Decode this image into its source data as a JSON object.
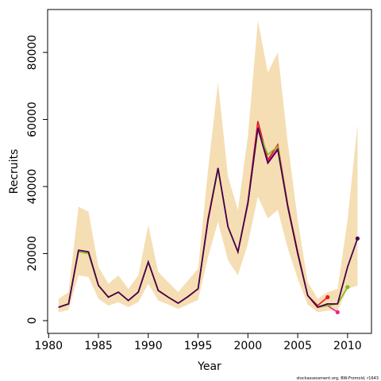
{
  "chart_data": {
    "type": "line",
    "xlabel": "Year",
    "ylabel": "Recruits",
    "footnote": "stockassessment.org, BW-Fromold, r1643",
    "x": [
      1981,
      1982,
      1983,
      1984,
      1985,
      1986,
      1987,
      1988,
      1989,
      1990,
      1991,
      1992,
      1993,
      1994,
      1995,
      1996,
      1997,
      1998,
      1999,
      2000,
      2001,
      2002,
      2003,
      2004,
      2005,
      2006,
      2007,
      2008,
      2009,
      2010,
      2011
    ],
    "xlim": [
      1979.9,
      2012.4
    ],
    "xticks": [
      1980,
      1985,
      1990,
      1995,
      2000,
      2005,
      2010
    ],
    "ylim": [
      -3800,
      92800
    ],
    "yticks": [
      0,
      20000,
      40000,
      60000,
      80000
    ],
    "band": {
      "color": "#f5deb3",
      "upper": [
        6500,
        8500,
        34000,
        32500,
        16000,
        11000,
        13500,
        9500,
        13500,
        28500,
        14500,
        11500,
        8500,
        12000,
        15500,
        45000,
        71000,
        43000,
        33000,
        55000,
        89500,
        74000,
        80000,
        53000,
        30000,
        11500,
        6500,
        8500,
        9500,
        30000,
        58500
      ],
      "lower": [
        2500,
        3200,
        13500,
        13000,
        6500,
        4500,
        5500,
        4000,
        5500,
        11000,
        6000,
        4800,
        3500,
        4800,
        6200,
        19000,
        29500,
        18000,
        13500,
        23000,
        37000,
        30500,
        33000,
        21500,
        12500,
        4800,
        2500,
        3000,
        3000,
        9500,
        10500
      ]
    },
    "series": [
      {
        "color": "#e41a1c",
        "marker_last": true,
        "values": [
          4000,
          5000,
          21000,
          20500,
          10500,
          7000,
          8500,
          6000,
          8500,
          17500,
          9000,
          7000,
          5200,
          7200,
          9500,
          30500,
          45500,
          28000,
          20500,
          35500,
          59500,
          48000,
          52500,
          34500,
          20500,
          7500,
          4500,
          7000,
          null,
          null,
          null
        ]
      },
      {
        "color": "#e7298a",
        "marker_last": true,
        "values": [
          4000,
          5000,
          21000,
          20500,
          10500,
          7000,
          8500,
          6000,
          8500,
          17500,
          9000,
          7000,
          5200,
          7200,
          9500,
          30000,
          45500,
          28000,
          20500,
          35000,
          58000,
          47500,
          51500,
          34000,
          20000,
          7500,
          4000,
          4500,
          2500,
          null,
          null
        ]
      },
      {
        "color": "#7fbc1c",
        "marker_last": true,
        "values": [
          4000,
          5000,
          20500,
          20000,
          10500,
          7000,
          8500,
          6000,
          8500,
          17500,
          9000,
          7000,
          5200,
          7200,
          9500,
          30000,
          45000,
          28000,
          20500,
          35000,
          57000,
          49500,
          52000,
          34000,
          20000,
          7500,
          4000,
          4500,
          5000,
          10000,
          null
        ]
      },
      {
        "color": "#000000",
        "marker_last": false,
        "values": [
          4000,
          5000,
          21000,
          20500,
          10500,
          7000,
          8500,
          6000,
          8500,
          17500,
          9000,
          7000,
          5200,
          7200,
          9500,
          30000,
          45500,
          28000,
          20500,
          35000,
          57500,
          47000,
          51000,
          34000,
          20000,
          7500,
          4000,
          5000,
          5000,
          16000,
          24500
        ]
      },
      {
        "color": "#4b0055",
        "marker_last": true,
        "values": [
          4000,
          5000,
          21000,
          20500,
          10500,
          7000,
          8500,
          6000,
          8500,
          17500,
          9000,
          7000,
          5200,
          7200,
          9500,
          30000,
          45500,
          28000,
          20500,
          35000,
          57500,
          47000,
          51000,
          34000,
          20000,
          7500,
          4000,
          5000,
          5000,
          16000,
          24500
        ]
      }
    ]
  }
}
